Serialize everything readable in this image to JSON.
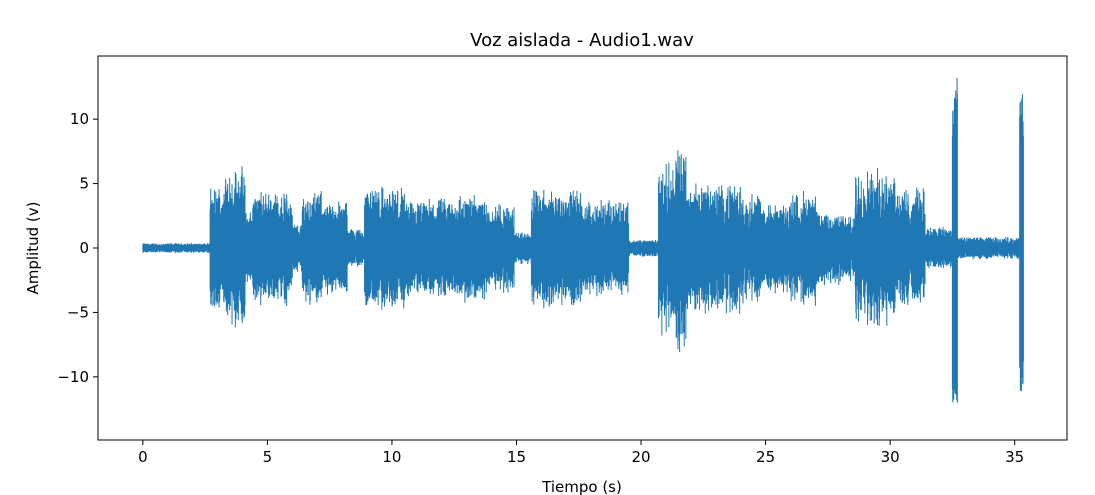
{
  "chart_data": {
    "type": "line",
    "title": "Voz aislada - Audio1.wav",
    "xlabel": "Tiempo (s)",
    "ylabel": "Amplitud (v)",
    "xlim": [
      -1.8,
      37.1
    ],
    "ylim": [
      -14.9,
      14.9
    ],
    "x_ticks": [
      0,
      5,
      10,
      15,
      20,
      25,
      30,
      35
    ],
    "y_ticks": [
      -10,
      -5,
      0,
      5,
      10
    ],
    "x_tick_labels": [
      "0",
      "5",
      "10",
      "15",
      "20",
      "25",
      "30",
      "35"
    ],
    "y_tick_labels": [
      "−10",
      "−5",
      "0",
      "5",
      "10"
    ],
    "grid": false,
    "line_color": "#1f77b4",
    "series": [
      {
        "segments": [
          {
            "t0": 0.0,
            "t1": 2.7,
            "amp": 0.4
          },
          {
            "t0": 2.7,
            "t1": 3.3,
            "amp": 5.0
          },
          {
            "t0": 3.3,
            "t1": 4.1,
            "amp": 6.5
          },
          {
            "t0": 4.1,
            "t1": 4.4,
            "amp": 3.0
          },
          {
            "t0": 4.4,
            "t1": 6.0,
            "amp": 4.6
          },
          {
            "t0": 6.0,
            "t1": 6.4,
            "amp": 2.0
          },
          {
            "t0": 6.4,
            "t1": 7.2,
            "amp": 4.6
          },
          {
            "t0": 7.2,
            "t1": 8.2,
            "amp": 3.8
          },
          {
            "t0": 8.2,
            "t1": 8.9,
            "amp": 1.6
          },
          {
            "t0": 8.9,
            "t1": 10.5,
            "amp": 5.0
          },
          {
            "t0": 10.5,
            "t1": 11.5,
            "amp": 3.8
          },
          {
            "t0": 11.5,
            "t1": 12.5,
            "amp": 4.0
          },
          {
            "t0": 12.5,
            "t1": 13.8,
            "amp": 4.4
          },
          {
            "t0": 13.8,
            "t1": 14.9,
            "amp": 3.6
          },
          {
            "t0": 14.9,
            "t1": 15.6,
            "amp": 1.3
          },
          {
            "t0": 15.6,
            "t1": 17.6,
            "amp": 4.8
          },
          {
            "t0": 17.6,
            "t1": 18.8,
            "amp": 3.8
          },
          {
            "t0": 18.8,
            "t1": 19.5,
            "amp": 4.0
          },
          {
            "t0": 19.5,
            "t1": 20.7,
            "amp": 0.7
          },
          {
            "t0": 20.7,
            "t1": 21.4,
            "amp": 6.8
          },
          {
            "t0": 21.4,
            "t1": 21.8,
            "amp": 8.5
          },
          {
            "t0": 21.8,
            "t1": 24.0,
            "amp": 5.2
          },
          {
            "t0": 24.0,
            "t1": 24.8,
            "amp": 4.6
          },
          {
            "t0": 24.8,
            "t1": 26.0,
            "amp": 3.6
          },
          {
            "t0": 26.0,
            "t1": 27.0,
            "amp": 4.6
          },
          {
            "t0": 27.0,
            "t1": 28.1,
            "amp": 3.0
          },
          {
            "t0": 28.1,
            "t1": 28.6,
            "amp": 2.6
          },
          {
            "t0": 28.6,
            "t1": 30.2,
            "amp": 6.4
          },
          {
            "t0": 30.2,
            "t1": 31.4,
            "amp": 4.8
          },
          {
            "t0": 31.4,
            "t1": 32.5,
            "amp": 1.8
          },
          {
            "t0": 32.5,
            "t1": 32.7,
            "amp": 13.5
          },
          {
            "t0": 32.7,
            "t1": 35.2,
            "amp": 0.9
          },
          {
            "t0": 35.2,
            "t1": 35.35,
            "amp": 12.4
          }
        ]
      }
    ]
  }
}
